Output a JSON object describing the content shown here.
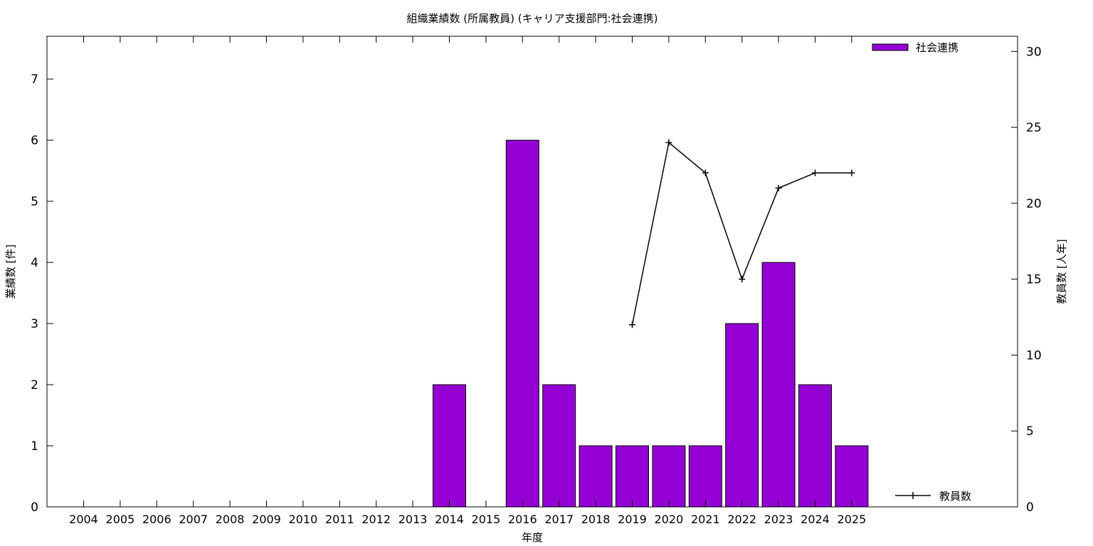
{
  "chart_data": {
    "type": "bar",
    "title": "組織業績数 (所属教員) (キャリア支援部門:社会連携)",
    "xlabel": "年度",
    "ylabel": "業績数 [件]",
    "y2label": "教員数 [人年]",
    "categories": [
      "2004",
      "2005",
      "2006",
      "2007",
      "2008",
      "2009",
      "2010",
      "2011",
      "2012",
      "2013",
      "2014",
      "2015",
      "2016",
      "2017",
      "2018",
      "2019",
      "2020",
      "2021",
      "2022",
      "2023",
      "2024",
      "2025"
    ],
    "ylim": [
      0,
      7.7
    ],
    "yticks": [
      0,
      1,
      2,
      3,
      4,
      5,
      6,
      7
    ],
    "y2lim": [
      0,
      31
    ],
    "y2ticks": [
      0,
      5,
      10,
      15,
      20,
      25,
      30
    ],
    "grid": false,
    "series": [
      {
        "name": "社会連携",
        "kind": "bar",
        "axis": "left",
        "color": "#9400d3",
        "values": [
          0,
          0,
          0,
          0,
          0,
          0,
          0,
          0,
          0,
          0,
          2,
          0,
          6,
          2,
          1,
          1,
          1,
          1,
          3,
          4,
          2,
          1
        ]
      },
      {
        "name": "教員数",
        "kind": "line",
        "axis": "right",
        "color": "#000000",
        "x": [
          "2019",
          "2020",
          "2021",
          "2022",
          "2023",
          "2024",
          "2025"
        ],
        "values": [
          12,
          24,
          22,
          15,
          21,
          22,
          22
        ]
      }
    ],
    "legend": [
      {
        "label": "社会連携",
        "placement": "top-right"
      },
      {
        "label": "教員数",
        "placement": "bottom-right"
      }
    ]
  }
}
